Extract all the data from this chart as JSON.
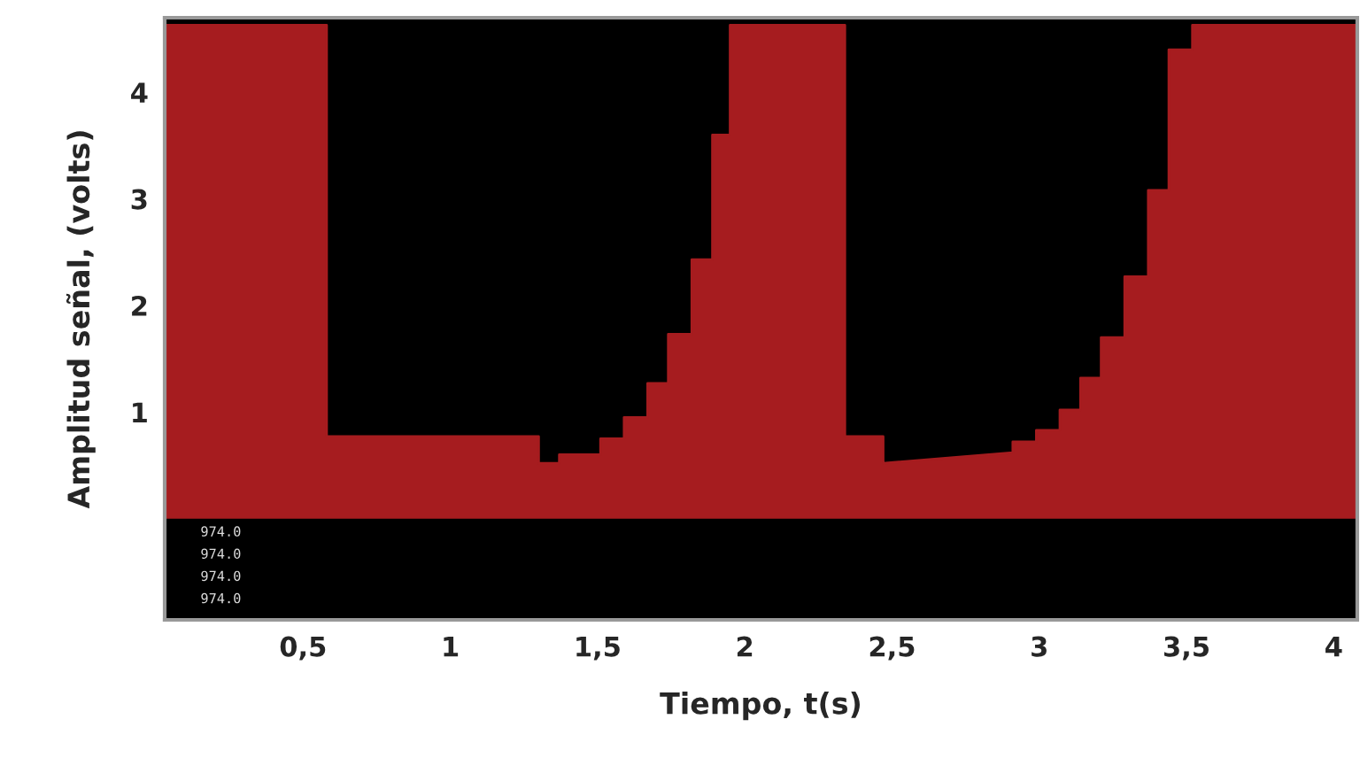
{
  "chart_data": {
    "type": "area",
    "xlabel": "Tiempo, t(s)",
    "ylabel": "Amplitud señal, (volts)",
    "series": [
      {
        "color": "#a61c1f",
        "x": [
          0.03,
          0.58,
          0.58,
          1.3,
          1.3,
          1.37,
          1.37,
          1.51,
          1.51,
          1.59,
          1.59,
          1.67,
          1.67,
          1.74,
          1.74,
          1.82,
          1.82,
          1.89,
          1.89,
          1.95,
          1.95,
          2.34,
          2.34,
          2.47,
          2.47,
          2.91,
          2.91,
          2.99,
          2.99,
          3.07,
          3.07,
          3.14,
          3.14,
          3.21,
          3.21,
          3.29,
          3.29,
          3.37,
          3.37,
          3.44,
          3.44,
          3.52,
          3.52,
          4.08
        ],
        "values": [
          4.63,
          4.63,
          0.77,
          0.77,
          0.52,
          0.52,
          0.6,
          0.6,
          0.75,
          0.75,
          0.95,
          0.95,
          1.27,
          1.27,
          1.73,
          1.73,
          2.43,
          2.43,
          3.6,
          3.6,
          4.63,
          4.63,
          0.77,
          0.77,
          0.52,
          0.62,
          0.72,
          0.72,
          0.83,
          0.83,
          1.02,
          1.02,
          1.32,
          1.32,
          1.7,
          1.7,
          2.27,
          2.27,
          3.08,
          3.08,
          4.4,
          4.4,
          4.63,
          4.63
        ]
      }
    ],
    "xlim": [
      0.03,
      4.08
    ],
    "ylim": [
      -0.95,
      4.7
    ],
    "xticks": [
      {
        "value": 0.5,
        "label": "0,5"
      },
      1,
      {
        "value": 1.5,
        "label": "1,5"
      },
      2,
      {
        "value": 2.5,
        "label": "2,5"
      },
      3,
      {
        "value": 3.5,
        "label": "3,5"
      },
      4
    ],
    "yticks": [
      1,
      2,
      3,
      4
    ],
    "annotations": [
      "974.0",
      "974.0",
      "974.0",
      "974.0"
    ],
    "grid": false,
    "legend": false
  }
}
